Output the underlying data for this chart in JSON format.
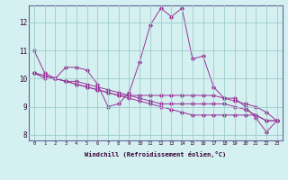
{
  "xlabel": "Windchill (Refroidissement éolien,°C)",
  "bg_color": "#d4f0f0",
  "grid_color": "#a0cccc",
  "line_color": "#993399",
  "xlim": [
    -0.5,
    23.5
  ],
  "ylim": [
    7.8,
    12.6
  ],
  "yticks": [
    8,
    9,
    10,
    11,
    12
  ],
  "xticks": [
    0,
    1,
    2,
    3,
    4,
    5,
    6,
    7,
    8,
    9,
    10,
    11,
    12,
    13,
    14,
    15,
    16,
    17,
    18,
    19,
    20,
    21,
    22,
    23
  ],
  "series": [
    [
      11.0,
      10.2,
      10.0,
      10.4,
      10.4,
      10.3,
      9.8,
      9.0,
      9.1,
      9.5,
      10.6,
      11.9,
      12.5,
      12.2,
      12.5,
      10.7,
      10.8,
      9.7,
      9.3,
      9.3,
      9.0,
      8.6,
      8.1,
      8.5
    ],
    [
      10.2,
      10.0,
      10.0,
      9.9,
      9.9,
      9.8,
      9.7,
      9.6,
      9.5,
      9.4,
      9.3,
      9.2,
      9.1,
      9.1,
      9.1,
      9.1,
      9.1,
      9.1,
      9.1,
      9.0,
      8.9,
      8.7,
      8.5,
      8.5
    ],
    [
      10.2,
      10.1,
      10.0,
      9.9,
      9.8,
      9.7,
      9.6,
      9.5,
      9.4,
      9.4,
      9.4,
      9.4,
      9.4,
      9.4,
      9.4,
      9.4,
      9.4,
      9.4,
      9.3,
      9.2,
      9.1,
      9.0,
      8.8,
      8.5
    ],
    [
      10.2,
      10.1,
      10.0,
      9.9,
      9.8,
      9.7,
      9.6,
      9.5,
      9.4,
      9.3,
      9.2,
      9.1,
      9.0,
      8.9,
      8.8,
      8.7,
      8.7,
      8.7,
      8.7,
      8.7,
      8.7,
      8.7,
      8.5,
      8.5
    ]
  ]
}
